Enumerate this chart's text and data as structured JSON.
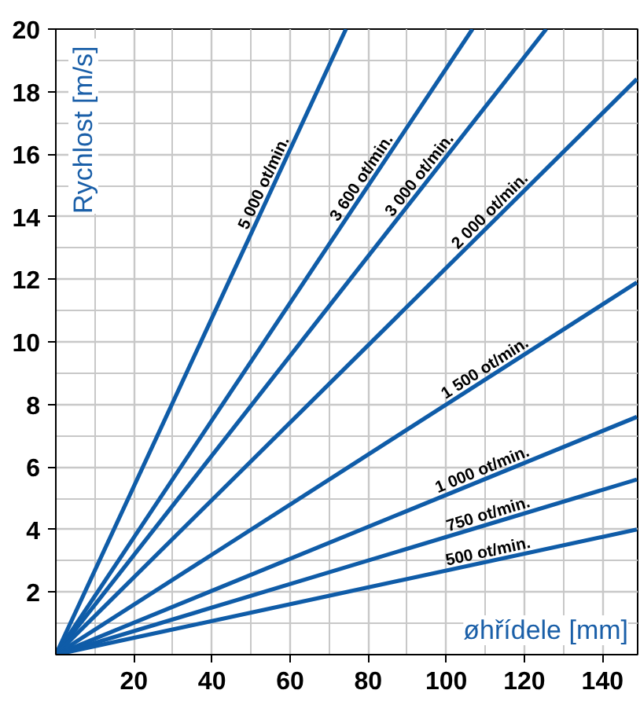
{
  "chart_data": {
    "type": "line",
    "xlabel": "øhřídele [mm]",
    "ylabel": "Rychlost  [m/s]",
    "xlim": [
      0,
      149
    ],
    "ylim": [
      0,
      20
    ],
    "xticks": [
      20,
      40,
      60,
      80,
      100,
      120,
      140
    ],
    "yticks": [
      2,
      4,
      6,
      8,
      10,
      12,
      14,
      16,
      18,
      20
    ],
    "grid": true,
    "marker": "none",
    "line_style": "solid",
    "series": [
      {
        "name": "5 000 ot/min.",
        "color": "#0f5ca8",
        "x": [
          0,
          74.3
        ],
        "values": [
          0,
          20
        ]
      },
      {
        "name": "3 600 ot/min.",
        "color": "#0f5ca8",
        "x": [
          0,
          106.7
        ],
        "values": [
          0,
          20
        ]
      },
      {
        "name": "3 000 ot/min.",
        "color": "#0f5ca8",
        "x": [
          0,
          125.6
        ],
        "values": [
          0,
          20
        ]
      },
      {
        "name": "2 000 ot/min.",
        "color": "#0f5ca8",
        "x": [
          0,
          148.8
        ],
        "values": [
          0,
          18.4
        ]
      },
      {
        "name": "1 500 ot/min.",
        "color": "#0f5ca8",
        "x": [
          0,
          148.8
        ],
        "values": [
          0,
          11.9
        ]
      },
      {
        "name": "1 000 ot/min.",
        "color": "#0f5ca8",
        "x": [
          0,
          148.8
        ],
        "values": [
          0,
          7.6
        ]
      },
      {
        "name": "750 ot/min.",
        "color": "#0f5ca8",
        "x": [
          0,
          148.8
        ],
        "values": [
          0,
          5.6
        ]
      },
      {
        "name": "500 ot/min.",
        "color": "#0f5ca8",
        "x": [
          0,
          148.8
        ],
        "values": [
          0,
          4.0
        ]
      }
    ]
  }
}
